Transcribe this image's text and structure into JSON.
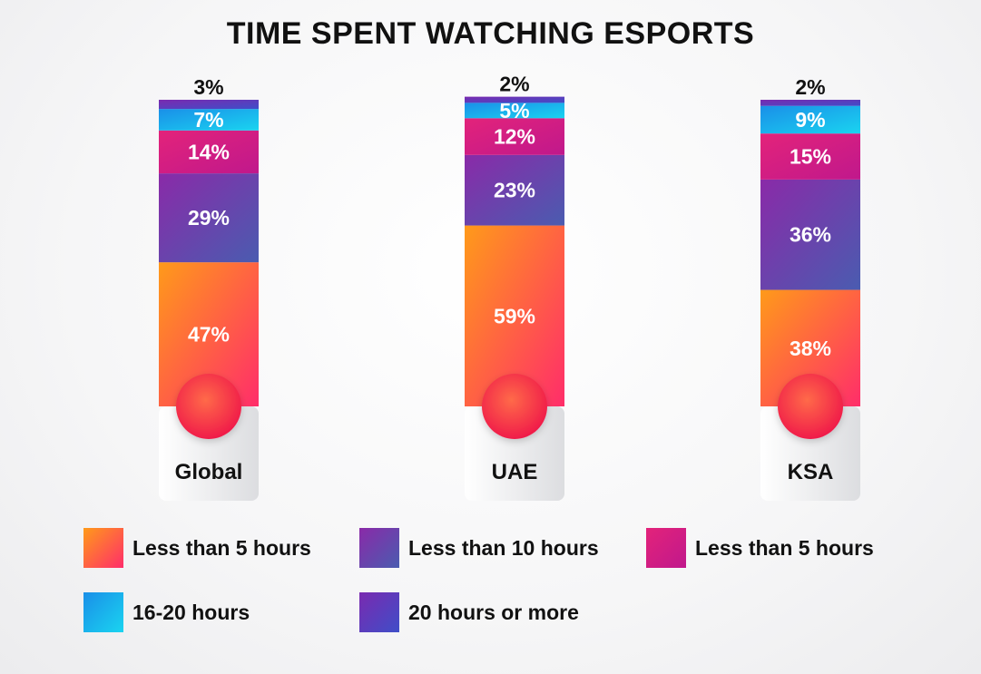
{
  "chart_data": {
    "type": "bar",
    "stacked": true,
    "title": "TIME SPENT WATCHING ESPORTS",
    "categories": [
      "Global",
      "UAE",
      "KSA"
    ],
    "series": [
      {
        "name": "Less than 5 hours",
        "values": [
          47,
          59,
          38
        ],
        "colors": [
          "#ff9a1a",
          "#ff2d6a"
        ]
      },
      {
        "name": "Less than 10 hours",
        "values": [
          29,
          23,
          36
        ],
        "colors": [
          "#8a2aa8",
          "#4a5cb0"
        ]
      },
      {
        "name": "Less than 5 hours",
        "values": [
          14,
          12,
          15
        ],
        "colors": [
          "#e3237a",
          "#c0188c"
        ]
      },
      {
        "name": "16-20 hours",
        "values": [
          7,
          5,
          9
        ],
        "colors": [
          "#1a8fe8",
          "#1ad4f0"
        ]
      },
      {
        "name": "20 hours or more",
        "values": [
          3,
          2,
          2
        ],
        "colors": [
          "#7a2ab0",
          "#3f4ec8"
        ]
      }
    ],
    "data_labels": [
      [
        "47%",
        "29%",
        "14%",
        "7%",
        "3%"
      ],
      [
        "59%",
        "23%",
        "12%",
        "5%",
        "2%"
      ],
      [
        "38%",
        "36%",
        "15%",
        "9%",
        "2%"
      ]
    ],
    "legend": "bottom",
    "grid": false
  }
}
